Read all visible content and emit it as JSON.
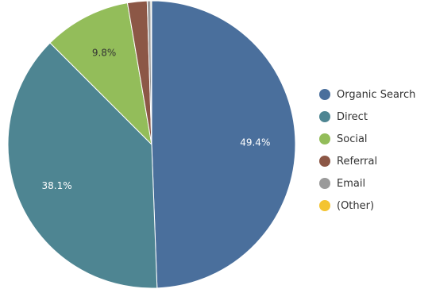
{
  "chart_data": {
    "type": "pie",
    "title": "",
    "start_angle_deg": 0,
    "direction": "clockwise",
    "legend_position": "right",
    "slices": [
      {
        "label": "Organic Search",
        "value": 49.4,
        "display": "49.4%",
        "color": "#4a6f9c",
        "show_label": true
      },
      {
        "label": "Direct",
        "value": 38.1,
        "display": "38.1%",
        "color": "#4e8592",
        "show_label": true
      },
      {
        "label": "Social",
        "value": 9.8,
        "display": "9.8%",
        "color": "#93bd5a",
        "show_label": true,
        "label_color": "dark"
      },
      {
        "label": "Referral",
        "value": 2.2,
        "display": "",
        "color": "#8c5746",
        "show_label": false
      },
      {
        "label": "Email",
        "value": 0.4,
        "display": "",
        "color": "#9a9a9a",
        "show_label": false
      },
      {
        "label": "(Other)",
        "value": 0.1,
        "display": "",
        "color": "#f4c430",
        "show_label": false
      }
    ]
  },
  "legend": {
    "items": [
      {
        "label": "Organic Search",
        "color": "#4a6f9c"
      },
      {
        "label": "Direct",
        "color": "#4e8592"
      },
      {
        "label": "Social",
        "color": "#93bd5a"
      },
      {
        "label": "Referral",
        "color": "#8c5746"
      },
      {
        "label": "Email",
        "color": "#9a9a9a"
      },
      {
        "label": "(Other)",
        "color": "#f4c430"
      }
    ]
  }
}
